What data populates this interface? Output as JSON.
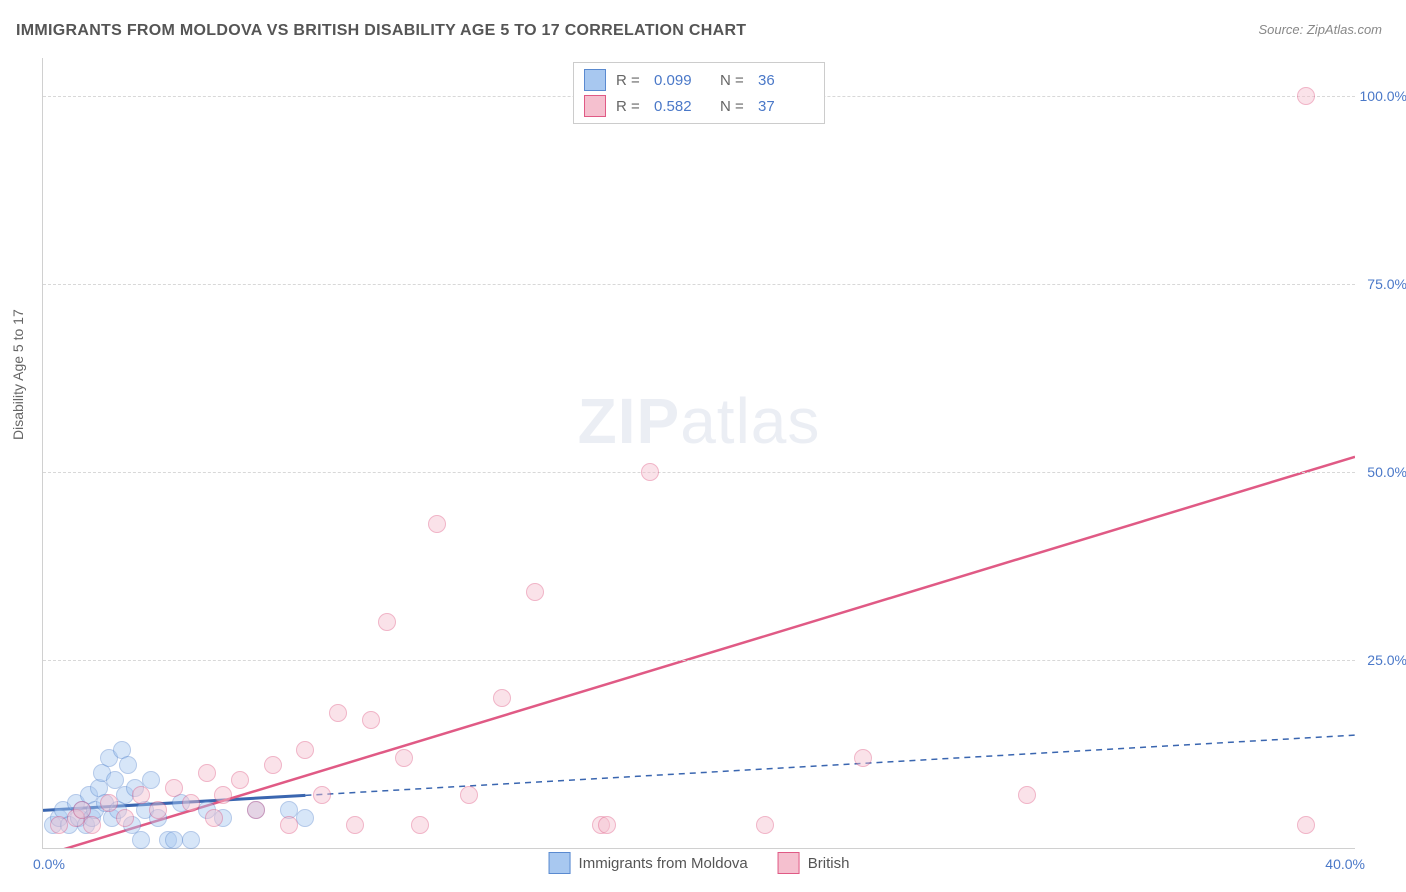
{
  "title": "IMMIGRANTS FROM MOLDOVA VS BRITISH DISABILITY AGE 5 TO 17 CORRELATION CHART",
  "source": "Source: ZipAtlas.com",
  "ylabel": "Disability Age 5 to 17",
  "watermark_a": "ZIP",
  "watermark_b": "atlas",
  "chart": {
    "type": "scatter",
    "xlim": [
      0,
      40
    ],
    "ylim": [
      0,
      105
    ],
    "xtick_left": "0.0%",
    "xtick_right": "40.0%",
    "yticks": [
      {
        "v": 25,
        "label": "25.0%"
      },
      {
        "v": 50,
        "label": "50.0%"
      },
      {
        "v": 75,
        "label": "75.0%"
      },
      {
        "v": 100,
        "label": "100.0%"
      }
    ],
    "grid_color": "#d8d8d8",
    "background_color": "#ffffff",
    "point_radius": 8,
    "point_opacity": 0.45,
    "series": [
      {
        "name": "Immigrants from Moldova",
        "color_fill": "#a8c8f0",
        "color_stroke": "#5a8ad0",
        "R": "0.099",
        "N": "36",
        "trend": {
          "x1": 0,
          "y1": 5,
          "x2": 40,
          "y2": 15,
          "color": "#3a66b0",
          "dash": "6,5",
          "width": 1.5,
          "solid_until_x": 8
        },
        "points": [
          {
            "x": 0.3,
            "y": 3
          },
          {
            "x": 0.5,
            "y": 4
          },
          {
            "x": 0.6,
            "y": 5
          },
          {
            "x": 0.8,
            "y": 3
          },
          {
            "x": 1.0,
            "y": 6
          },
          {
            "x": 1.1,
            "y": 4
          },
          {
            "x": 1.2,
            "y": 5
          },
          {
            "x": 1.3,
            "y": 3
          },
          {
            "x": 1.4,
            "y": 7
          },
          {
            "x": 1.5,
            "y": 4
          },
          {
            "x": 1.6,
            "y": 5
          },
          {
            "x": 1.7,
            "y": 8
          },
          {
            "x": 1.8,
            "y": 10
          },
          {
            "x": 1.9,
            "y": 6
          },
          {
            "x": 2.0,
            "y": 12
          },
          {
            "x": 2.1,
            "y": 4
          },
          {
            "x": 2.2,
            "y": 9
          },
          {
            "x": 2.3,
            "y": 5
          },
          {
            "x": 2.4,
            "y": 13
          },
          {
            "x": 2.5,
            "y": 7
          },
          {
            "x": 2.6,
            "y": 11
          },
          {
            "x": 2.7,
            "y": 3
          },
          {
            "x": 2.8,
            "y": 8
          },
          {
            "x": 3.0,
            "y": 1
          },
          {
            "x": 3.1,
            "y": 5
          },
          {
            "x": 3.3,
            "y": 9
          },
          {
            "x": 3.5,
            "y": 4
          },
          {
            "x": 3.8,
            "y": 1
          },
          {
            "x": 4.0,
            "y": 1
          },
          {
            "x": 4.2,
            "y": 6
          },
          {
            "x": 4.5,
            "y": 1
          },
          {
            "x": 5.0,
            "y": 5
          },
          {
            "x": 5.5,
            "y": 4
          },
          {
            "x": 6.5,
            "y": 5
          },
          {
            "x": 7.5,
            "y": 5
          },
          {
            "x": 8.0,
            "y": 4
          }
        ]
      },
      {
        "name": "British",
        "color_fill": "#f5c0cf",
        "color_stroke": "#e05a85",
        "R": "0.582",
        "N": "37",
        "trend": {
          "x1": 0,
          "y1": -1,
          "x2": 40,
          "y2": 52,
          "color": "#e05a85",
          "dash": "",
          "width": 2.5
        },
        "points": [
          {
            "x": 0.5,
            "y": 3
          },
          {
            "x": 1.0,
            "y": 4
          },
          {
            "x": 1.2,
            "y": 5
          },
          {
            "x": 1.5,
            "y": 3
          },
          {
            "x": 2.0,
            "y": 6
          },
          {
            "x": 2.5,
            "y": 4
          },
          {
            "x": 3.0,
            "y": 7
          },
          {
            "x": 3.5,
            "y": 5
          },
          {
            "x": 4.0,
            "y": 8
          },
          {
            "x": 4.5,
            "y": 6
          },
          {
            "x": 5.0,
            "y": 10
          },
          {
            "x": 5.2,
            "y": 4
          },
          {
            "x": 5.5,
            "y": 7
          },
          {
            "x": 6.0,
            "y": 9
          },
          {
            "x": 6.5,
            "y": 5
          },
          {
            "x": 7.0,
            "y": 11
          },
          {
            "x": 7.5,
            "y": 3
          },
          {
            "x": 8.0,
            "y": 13
          },
          {
            "x": 8.5,
            "y": 7
          },
          {
            "x": 9.0,
            "y": 18
          },
          {
            "x": 9.5,
            "y": 3
          },
          {
            "x": 10.0,
            "y": 17
          },
          {
            "x": 10.5,
            "y": 30
          },
          {
            "x": 11.0,
            "y": 12
          },
          {
            "x": 11.5,
            "y": 3
          },
          {
            "x": 12.0,
            "y": 43
          },
          {
            "x": 13.0,
            "y": 7
          },
          {
            "x": 14.0,
            "y": 20
          },
          {
            "x": 15.0,
            "y": 34
          },
          {
            "x": 17.0,
            "y": 3
          },
          {
            "x": 17.2,
            "y": 3
          },
          {
            "x": 18.5,
            "y": 50
          },
          {
            "x": 22.0,
            "y": 3
          },
          {
            "x": 25.0,
            "y": 12
          },
          {
            "x": 30.0,
            "y": 7
          },
          {
            "x": 38.5,
            "y": 3
          },
          {
            "x": 38.5,
            "y": 100
          }
        ]
      }
    ]
  }
}
